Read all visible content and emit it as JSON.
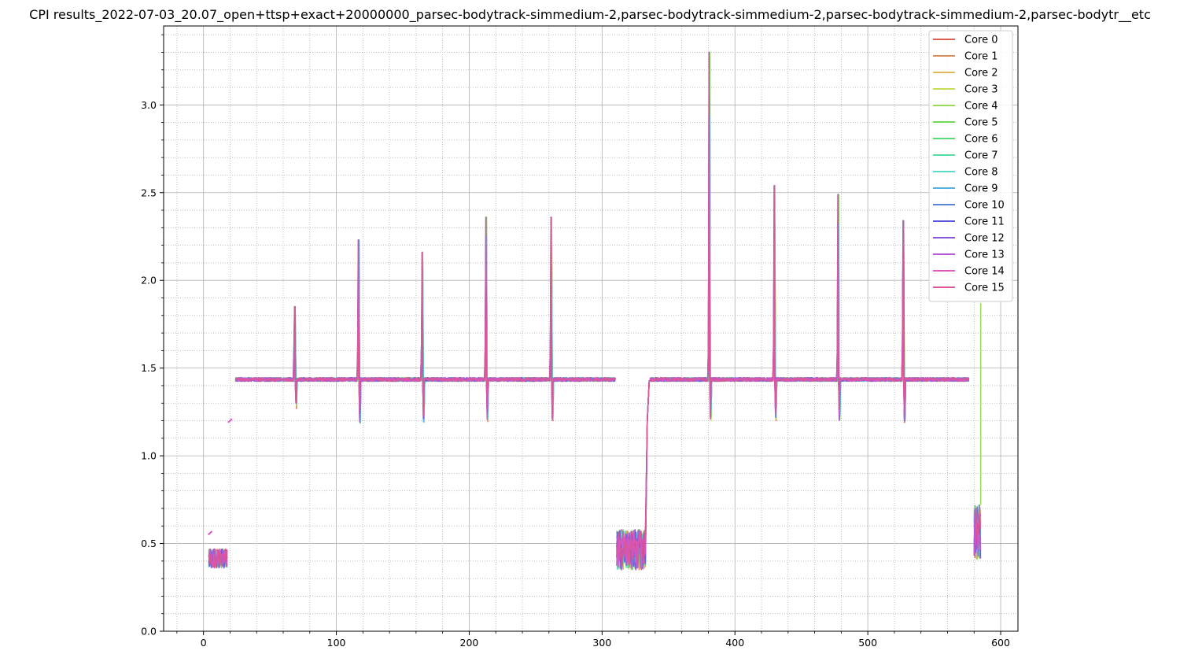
{
  "chart_data": {
    "type": "line",
    "title": "CPI results_2022-07-03_20.07_open+ttsp+exact+20000000_parsec-bodytrack-simmedium-2,parsec-bodytrack-simmedium-2,parsec-bodytrack-simmedium-2,parsec-bodytr__etc",
    "xlabel": "",
    "ylabel": "",
    "xlim": [
      -30,
      613
    ],
    "ylim": [
      0.0,
      3.45
    ],
    "x_ticks": [
      0,
      100,
      200,
      300,
      400,
      500,
      600
    ],
    "y_ticks": [
      0.0,
      0.5,
      1.0,
      1.5,
      2.0,
      2.5,
      3.0
    ],
    "x_tick_labels": [
      "0",
      "100",
      "200",
      "300",
      "400",
      "500",
      "600"
    ],
    "y_tick_labels": [
      "0.0",
      "0.5",
      "1.0",
      "1.5",
      "2.0",
      "2.5",
      "3.0"
    ],
    "grid": "major solid, minor dotted",
    "legend_position": "top-right",
    "baseline": 1.435,
    "phases": [
      {
        "x_start": 4,
        "x_end": 18,
        "kind": "low",
        "low": 0.36,
        "high": 0.47
      },
      {
        "x_start": 24,
        "x_end": 310,
        "kind": "plateau"
      },
      {
        "x_start": 311,
        "x_end": 333,
        "kind": "low",
        "low": 0.35,
        "high": 0.58
      },
      {
        "x_start": 336,
        "x_end": 576,
        "kind": "plateau"
      },
      {
        "x_start": 580,
        "x_end": 585,
        "kind": "low",
        "low": 0.41,
        "high": 0.72
      }
    ],
    "spikes": [
      {
        "x": 69,
        "peak": 1.85,
        "dip": 1.26
      },
      {
        "x": 117,
        "peak": 2.23,
        "dip": 1.18
      },
      {
        "x": 165,
        "peak": 2.16,
        "dip": 1.19
      },
      {
        "x": 213,
        "peak": 2.36,
        "dip": 1.19
      },
      {
        "x": 262,
        "peak": 2.36,
        "dip": 1.19
      },
      {
        "x": 381,
        "peak": 3.3,
        "dip": 1.2
      },
      {
        "x": 430,
        "peak": 2.54,
        "dip": 1.2
      },
      {
        "x": 478,
        "peak": 2.49,
        "dip": 1.2
      },
      {
        "x": 527,
        "peak": 2.34,
        "dip": 1.19
      }
    ],
    "isolated_points": [
      {
        "x": 5,
        "y": 0.56
      },
      {
        "x": 20,
        "y": 1.2
      },
      {
        "x": 585,
        "y": 1.87
      }
    ],
    "series": [
      {
        "name": "Core 0",
        "color": "#db5f57"
      },
      {
        "name": "Core 1",
        "color": "#db8d57"
      },
      {
        "name": "Core 2",
        "color": "#dbba57"
      },
      {
        "name": "Core 3",
        "color": "#c8db57"
      },
      {
        "name": "Core 4",
        "color": "#9bdb57"
      },
      {
        "name": "Core 5",
        "color": "#6edb57"
      },
      {
        "name": "Core 6",
        "color": "#57db76"
      },
      {
        "name": "Core 7",
        "color": "#57dba3"
      },
      {
        "name": "Core 8",
        "color": "#57dbd1"
      },
      {
        "name": "Core 9",
        "color": "#57b1db"
      },
      {
        "name": "Core 10",
        "color": "#5784db"
      },
      {
        "name": "Core 11",
        "color": "#5a57db"
      },
      {
        "name": "Core 12",
        "color": "#8757db"
      },
      {
        "name": "Core 13",
        "color": "#b457db"
      },
      {
        "name": "Core 14",
        "color": "#db57c3"
      },
      {
        "name": "Core 15",
        "color": "#db5796"
      }
    ]
  }
}
